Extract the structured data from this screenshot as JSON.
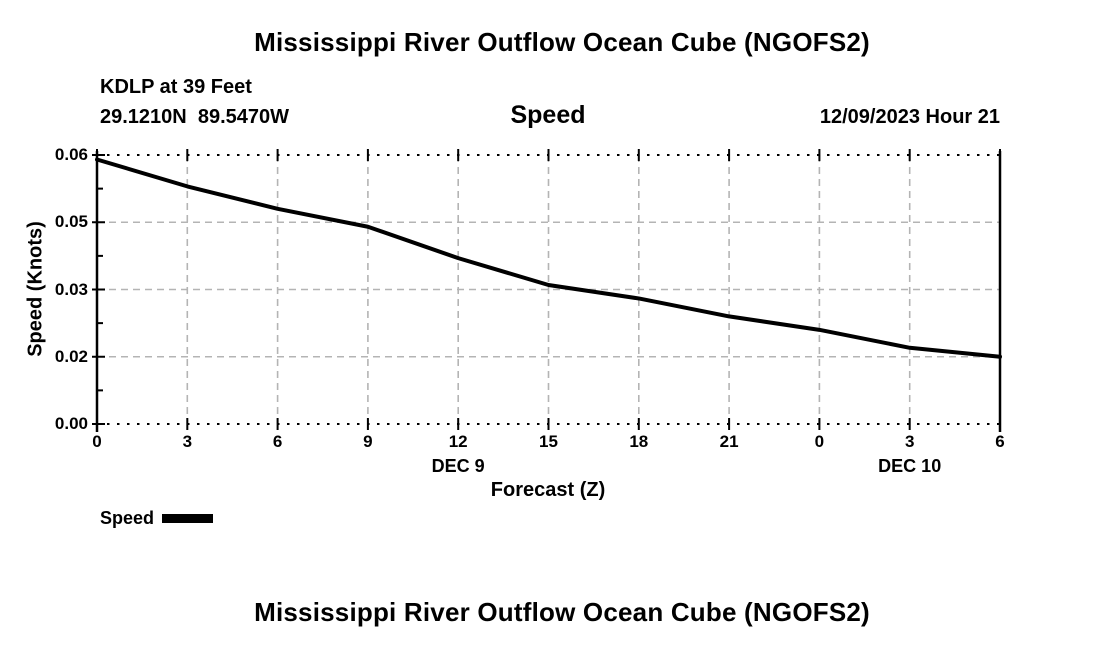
{
  "page": {
    "top_title": "Mississippi River Outflow Ocean Cube (NGOFS2)",
    "bottom_title": "Mississippi River Outflow Ocean Cube (NGOFS2)"
  },
  "header": {
    "station": "KDLP at 39 Feet",
    "coordinates": "29.1210N  89.5470W",
    "plot_label": "Speed",
    "datetime": "12/09/2023 Hour 21"
  },
  "chart_data": {
    "type": "line",
    "title": "Speed",
    "xlabel": "Forecast (Z)",
    "ylabel": "Speed (Knots)",
    "xlim": [
      0,
      30
    ],
    "ylim": [
      0,
      0.06
    ],
    "grid": true,
    "x_hours": [
      0,
      3,
      6,
      9,
      12,
      15,
      18,
      21,
      24,
      27,
      30
    ],
    "x_tick_labels": [
      "0",
      "3",
      "6",
      "9",
      "12",
      "15",
      "18",
      "21",
      "0",
      "3",
      "6"
    ],
    "day_labels": [
      {
        "label": "DEC 9",
        "hour": 12
      },
      {
        "label": "DEC 10",
        "hour": 27
      }
    ],
    "y_ticks": [
      {
        "value": 0.0,
        "label": "0.00"
      },
      {
        "value": 0.015,
        "label": "0.02"
      },
      {
        "value": 0.03,
        "label": "0.03"
      },
      {
        "value": 0.045,
        "label": "0.05"
      },
      {
        "value": 0.06,
        "label": "0.06"
      }
    ],
    "series": [
      {
        "name": "Speed",
        "color": "#000000",
        "values": [
          0.059,
          0.053,
          0.048,
          0.044,
          0.037,
          0.031,
          0.028,
          0.024,
          0.021,
          0.017,
          0.015
        ]
      }
    ],
    "legend": {
      "position": "below-left",
      "entries": [
        {
          "label": "Speed",
          "color": "#000000"
        }
      ]
    }
  },
  "colors": {
    "background": "#ffffff",
    "text": "#000000",
    "grid": "#b4b4b4",
    "frame": "#000000",
    "line": "#000000"
  }
}
